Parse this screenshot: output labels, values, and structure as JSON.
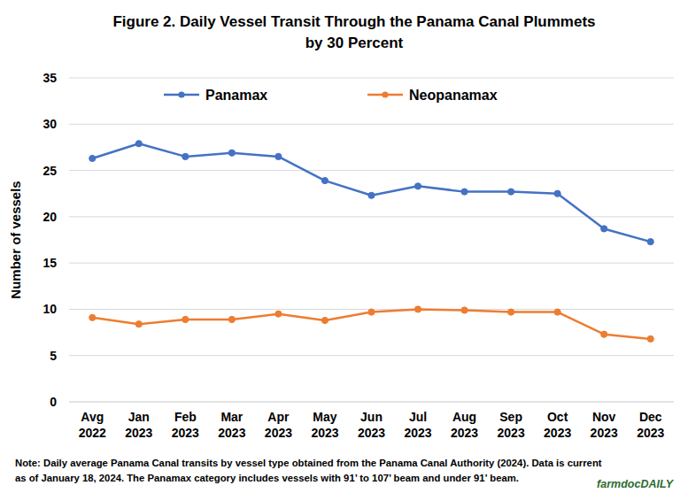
{
  "chart_data": {
    "type": "line",
    "title": "Figure 2. Daily Vessel Transit Through the Panama Canal Plummets\nby 30 Percent",
    "y_label": "Number of vessels",
    "note": "Note: Daily average Panama Canal transits by vessel type obtained from the Panama Canal Authority (2024). Data is current\nas of January 18, 2024.  The Panamax category includes vessels with 91’ to 107’ beam and under 91’ beam.",
    "brand": "farmdocDAILY",
    "categories": [
      "Avg\n2022",
      "Jan\n2023",
      "Feb\n2023",
      "Mar\n2023",
      "Apr\n2023",
      "May\n2023",
      "Jun\n2023",
      "Jul\n2023",
      "Aug\n2023",
      "Sep\n2023",
      "Oct\n2023",
      "Nov\n2023",
      "Dec\n2023"
    ],
    "series": [
      {
        "name": "Panamax",
        "color": "#4472c4",
        "marker": "circle",
        "values": [
          26.3,
          27.9,
          26.5,
          26.9,
          26.5,
          23.9,
          22.3,
          23.3,
          22.7,
          22.7,
          22.5,
          18.7,
          17.3
        ]
      },
      {
        "name": "Neopanamax",
        "color": "#ed7d31",
        "marker": "circle",
        "values": [
          9.1,
          8.4,
          8.9,
          8.9,
          9.5,
          8.8,
          9.7,
          10.0,
          9.9,
          9.7,
          9.7,
          7.3,
          6.8
        ]
      }
    ],
    "ylim": [
      0,
      35
    ],
    "yticks": [
      0,
      5,
      10,
      15,
      20,
      25,
      30,
      35
    ],
    "grid": true,
    "legend": "top"
  }
}
